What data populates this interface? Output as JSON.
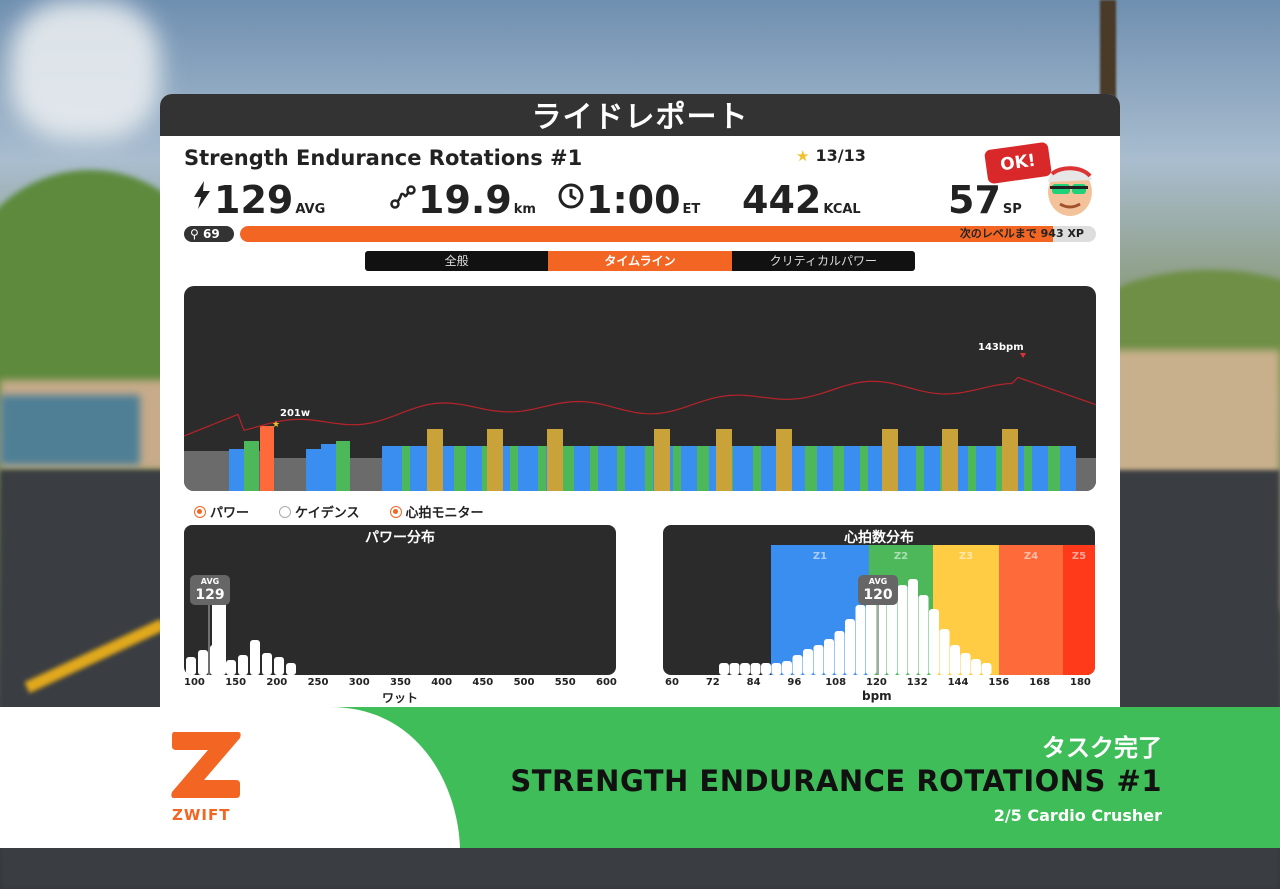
{
  "panel": {
    "header_title": "ライドレポート",
    "ride_title": "Strength Endurance Rotations #1",
    "stars": "13/13",
    "ok_badge": "OK!"
  },
  "stats": {
    "power": {
      "value": "129",
      "unit": "AVG",
      "icon": "lightning-icon"
    },
    "distance": {
      "value": "19.9",
      "unit": "km",
      "icon": "route-icon"
    },
    "time": {
      "value": "1:00",
      "unit": "ET",
      "icon": "clock-icon"
    },
    "calories": {
      "value": "442",
      "unit": "KCAL"
    },
    "sport_points": {
      "value": "57",
      "unit": "SP"
    }
  },
  "level": {
    "number": "69",
    "progress_fraction": 0.95,
    "next_level_label": "次のレベルまで",
    "xp_remaining": "943 XP"
  },
  "tabs": [
    {
      "label": "全般",
      "active": false
    },
    {
      "label": "タイムライン",
      "active": true
    },
    {
      "label": "クリティカルパワー",
      "active": false
    }
  ],
  "timeline": {
    "max_power_label": "201w",
    "max_hr_label": "143bpm"
  },
  "legend": [
    {
      "label": "パワー",
      "checked": true
    },
    {
      "label": "ケイデンス",
      "checked": false
    },
    {
      "label": "心拍モニター",
      "checked": true
    }
  ],
  "power_distribution": {
    "title": "パワー分布",
    "avg_label": "AVG",
    "avg_value": "129",
    "x_ticks": [
      "100",
      "150",
      "200",
      "250",
      "300",
      "350",
      "400",
      "450",
      "500",
      "550",
      "600"
    ],
    "x_title": "ワット"
  },
  "hr_distribution": {
    "title": "心拍数分布",
    "avg_label": "AVG",
    "avg_value": "120",
    "zones": [
      "Z1",
      "Z2",
      "Z3",
      "Z4",
      "Z5"
    ],
    "x_ticks": [
      "60",
      "72",
      "84",
      "96",
      "108",
      "120",
      "132",
      "144",
      "156",
      "168",
      "180"
    ],
    "x_title": "bpm"
  },
  "banner": {
    "logo_text": "ZWIFT",
    "task_done": "タスク完了",
    "workout_name": "STRENGTH ENDURANCE ROTATIONS #1",
    "plan_name": "2/5 Cardio Crusher"
  },
  "colors": {
    "accent": "#f26522",
    "banner_green": "#3fbd59",
    "zone_blue": "#3a8ef0",
    "zone_green": "#4cb85a",
    "zone_yellow": "#ffcc44",
    "zone_orange": "#ff6a3a",
    "zone_red": "#ff3a1a",
    "hr_line": "#b8232a"
  }
}
